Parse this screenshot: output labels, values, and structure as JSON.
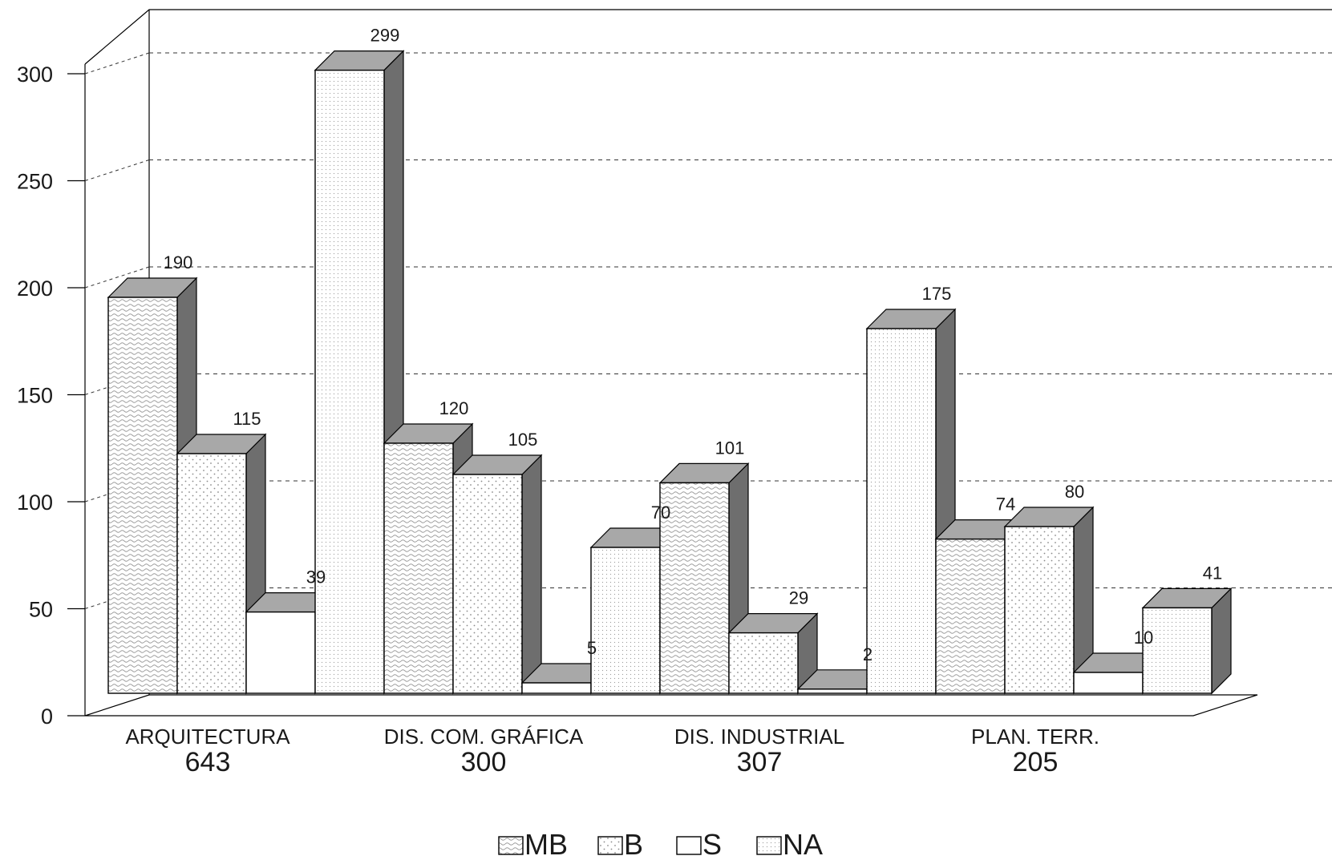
{
  "chart_data": {
    "type": "bar",
    "style": "3d-clustered",
    "categories": [
      "ARQUITECTURA",
      "DIS. COM. GRÁFICA",
      "DIS. INDUSTRIAL",
      "PLAN. TERR."
    ],
    "category_totals": [
      "643",
      "300",
      "307",
      "205"
    ],
    "series": [
      {
        "name": "MB",
        "values": [
          190,
          120,
          101,
          74
        ],
        "pattern": "wavy"
      },
      {
        "name": "B",
        "values": [
          115,
          105,
          29,
          80
        ],
        "pattern": "dots"
      },
      {
        "name": "S",
        "values": [
          39,
          5,
          2,
          10
        ],
        "pattern": "none"
      },
      {
        "name": "NA",
        "values": [
          299,
          70,
          175,
          41
        ],
        "pattern": "fine-dots"
      }
    ],
    "y_ticks": [
      "0",
      "50",
      "100",
      "150",
      "200",
      "250",
      "300"
    ],
    "ylim": [
      0,
      300
    ],
    "grid": true,
    "legend_position": "bottom",
    "colors": {
      "front": "#ffffff",
      "top": "#a8a8a8",
      "side": "#6e6e6e",
      "grid": "#333333",
      "pattern": "#8a8a8a"
    }
  }
}
